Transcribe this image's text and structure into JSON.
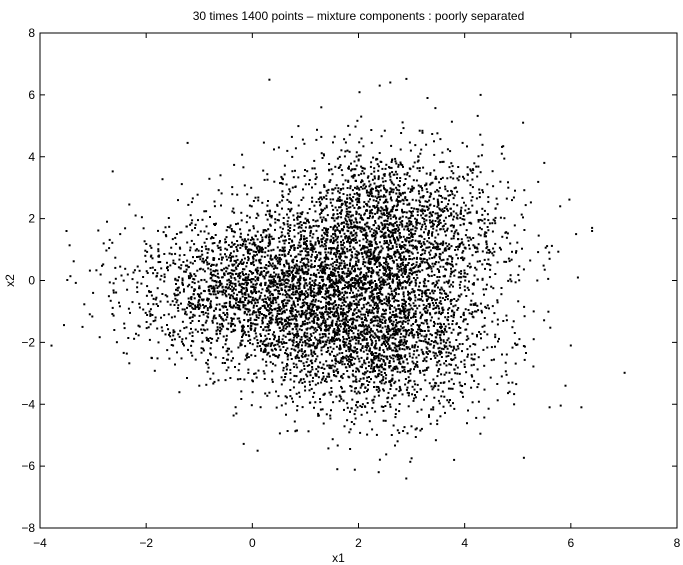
{
  "chart_data": {
    "type": "scatter",
    "title": "30 times 1400 points – mixture components : poorly separated",
    "xlabel": "x1",
    "ylabel": "x2",
    "xlim": [
      -4,
      8
    ],
    "ylim": [
      -8,
      8
    ],
    "xticks": [
      -4,
      -2,
      0,
      2,
      4,
      6,
      8
    ],
    "yticks": [
      -8,
      -6,
      -4,
      -2,
      0,
      2,
      4,
      6,
      8
    ],
    "xtick_labels": [
      "−4",
      "−2",
      "0",
      "2",
      "4",
      "6",
      "8"
    ],
    "ytick_labels": [
      "−8",
      "−6",
      "−4",
      "−2",
      "0",
      "2",
      "4",
      "6",
      "8"
    ],
    "grid": false,
    "marker_color": "#000000",
    "series": [
      {
        "n_points": 42000,
        "components": [
          {
            "center": [
              2.5,
              1.5
            ],
            "spread": [
              1.1,
              1.4
            ]
          },
          {
            "center": [
              2.3,
              -1.8
            ],
            "spread": [
              1.1,
              1.3
            ]
          },
          {
            "center": [
              0.2,
              -0.3
            ],
            "spread": [
              1.2,
              1.2
            ]
          }
        ],
        "outliers": [
          [
            -3.5,
            1.6
          ],
          [
            -3.2,
            -1.5
          ],
          [
            -3.0,
            -0.4
          ],
          [
            -2.8,
            1.2
          ],
          [
            -2.6,
            -1.6
          ],
          [
            -2.2,
            2.1
          ],
          [
            -1.9,
            -2.5
          ],
          [
            -1.4,
            2.6
          ],
          [
            -1.0,
            -3.4
          ],
          [
            -0.6,
            3.4
          ],
          [
            -0.3,
            -4.3
          ],
          [
            0.1,
            -5.5
          ],
          [
            0.5,
            4.3
          ],
          [
            1.3,
            5.6
          ],
          [
            1.6,
            -6.1
          ],
          [
            2.4,
            6.3
          ],
          [
            2.6,
            6.4
          ],
          [
            2.9,
            -6.4
          ],
          [
            3.3,
            5.9
          ],
          [
            3.8,
            -5.8
          ],
          [
            4.3,
            6.0
          ],
          [
            4.7,
            4.1
          ],
          [
            5.1,
            5.1
          ],
          [
            5.5,
            3.8
          ],
          [
            5.6,
            -4.1
          ],
          [
            5.8,
            2.4
          ],
          [
            6.0,
            -2.1
          ],
          [
            6.1,
            1.5
          ],
          [
            6.2,
            -4.1
          ],
          [
            6.4,
            1.6
          ],
          [
            6.4,
            1.7
          ],
          [
            5.3,
            -1.0
          ],
          [
            5.6,
            0.7
          ],
          [
            4.9,
            -3.3
          ],
          [
            5.9,
            -3.4
          ]
        ]
      }
    ]
  }
}
